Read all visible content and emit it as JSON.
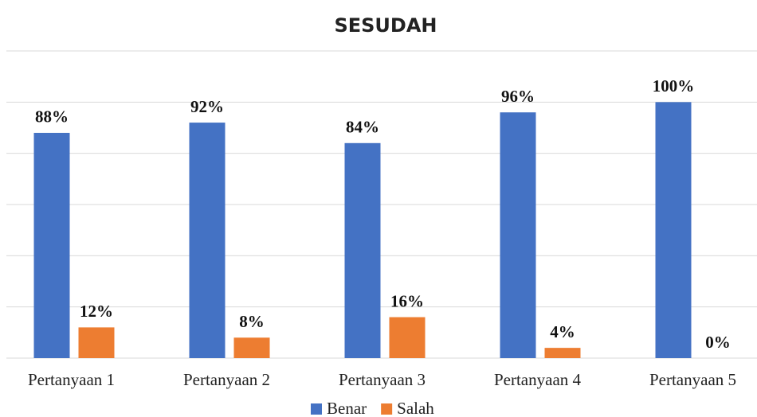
{
  "chart_data": {
    "type": "bar",
    "title": "SESUDAH",
    "categories": [
      "Pertanyaan 1",
      "Pertanyaan 2",
      "Pertanyaan 3",
      "Pertanyaan 4",
      "Pertanyaan 5"
    ],
    "series": [
      {
        "name": "Benar",
        "color": "#4472c4",
        "values": [
          88,
          92,
          84,
          96,
          100
        ],
        "value_labels": [
          "88%",
          "92%",
          "84%",
          "96%",
          "100%"
        ]
      },
      {
        "name": "Salah",
        "color": "#ed7d31",
        "values": [
          12,
          8,
          16,
          4,
          0
        ],
        "value_labels": [
          "12%",
          "8%",
          "16%",
          "4%",
          "0%"
        ]
      }
    ],
    "ylim": [
      0,
      120
    ],
    "yticks": [
      0,
      20,
      40,
      60,
      80,
      100,
      120
    ],
    "grid": true,
    "legend": "bottom"
  }
}
